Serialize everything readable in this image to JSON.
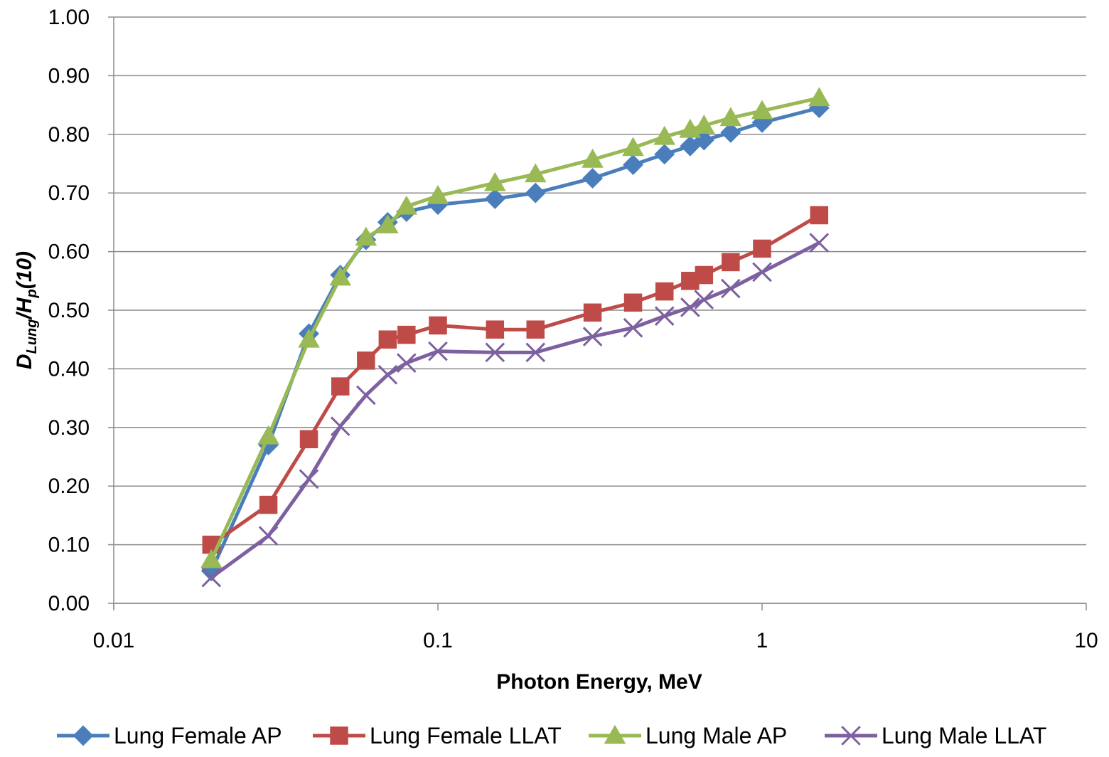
{
  "chart_data": {
    "type": "line",
    "x_scale": "log",
    "xlim": [
      0.01,
      10
    ],
    "ylim": [
      0,
      1
    ],
    "x_ticks": [
      {
        "value": 0.01,
        "label": "0.01"
      },
      {
        "value": 0.1,
        "label": "0.1"
      },
      {
        "value": 1,
        "label": "1"
      },
      {
        "value": 10,
        "label": "10"
      }
    ],
    "y_ticks": [
      {
        "value": 0.0,
        "label": "0.00"
      },
      {
        "value": 0.1,
        "label": "0.10"
      },
      {
        "value": 0.2,
        "label": "0.20"
      },
      {
        "value": 0.3,
        "label": "0.30"
      },
      {
        "value": 0.4,
        "label": "0.40"
      },
      {
        "value": 0.5,
        "label": "0.50"
      },
      {
        "value": 0.6,
        "label": "0.60"
      },
      {
        "value": 0.7,
        "label": "0.70"
      },
      {
        "value": 0.8,
        "label": "0.80"
      },
      {
        "value": 0.9,
        "label": "0.90"
      },
      {
        "value": 1.0,
        "label": "1.00"
      }
    ],
    "xlabel": "Photon Energy, MeV",
    "ylabel": {
      "main_d": "D",
      "sub_d": "Lung",
      "slash_h": "/H",
      "sub_h": "p",
      "tail": "(10)"
    },
    "grid": "horizontal",
    "legend_position": "bottom",
    "x": [
      0.02,
      0.03,
      0.04,
      0.05,
      0.06,
      0.07,
      0.08,
      0.1,
      0.15,
      0.2,
      0.3,
      0.4,
      0.5,
      0.6,
      0.662,
      0.8,
      1.0,
      1.5
    ],
    "series": [
      {
        "name": "Lung Female AP",
        "color": "#4a7ebb",
        "marker": "diamond",
        "values": [
          0.055,
          0.27,
          0.46,
          0.56,
          0.62,
          0.65,
          0.668,
          0.68,
          0.69,
          0.7,
          0.725,
          0.748,
          0.766,
          0.78,
          0.79,
          0.803,
          0.82,
          0.845
        ]
      },
      {
        "name": "Lung Female LLAT",
        "color": "#be4b48",
        "marker": "square",
        "values": [
          0.1,
          0.168,
          0.28,
          0.37,
          0.414,
          0.45,
          0.458,
          0.474,
          0.467,
          0.467,
          0.496,
          0.513,
          0.532,
          0.55,
          0.56,
          0.582,
          0.605,
          0.662
        ]
      },
      {
        "name": "Lung Male AP",
        "color": "#98b954",
        "marker": "triangle",
        "values": [
          0.074,
          0.285,
          0.45,
          0.556,
          0.624,
          0.645,
          0.677,
          0.695,
          0.717,
          0.732,
          0.757,
          0.777,
          0.796,
          0.808,
          0.815,
          0.828,
          0.84,
          0.862
        ]
      },
      {
        "name": "Lung Male LLAT",
        "color": "#7d60a0",
        "marker": "x",
        "values": [
          0.044,
          0.115,
          0.212,
          0.302,
          0.355,
          0.39,
          0.41,
          0.43,
          0.428,
          0.428,
          0.455,
          0.47,
          0.49,
          0.505,
          0.518,
          0.537,
          0.565,
          0.615
        ]
      }
    ]
  }
}
